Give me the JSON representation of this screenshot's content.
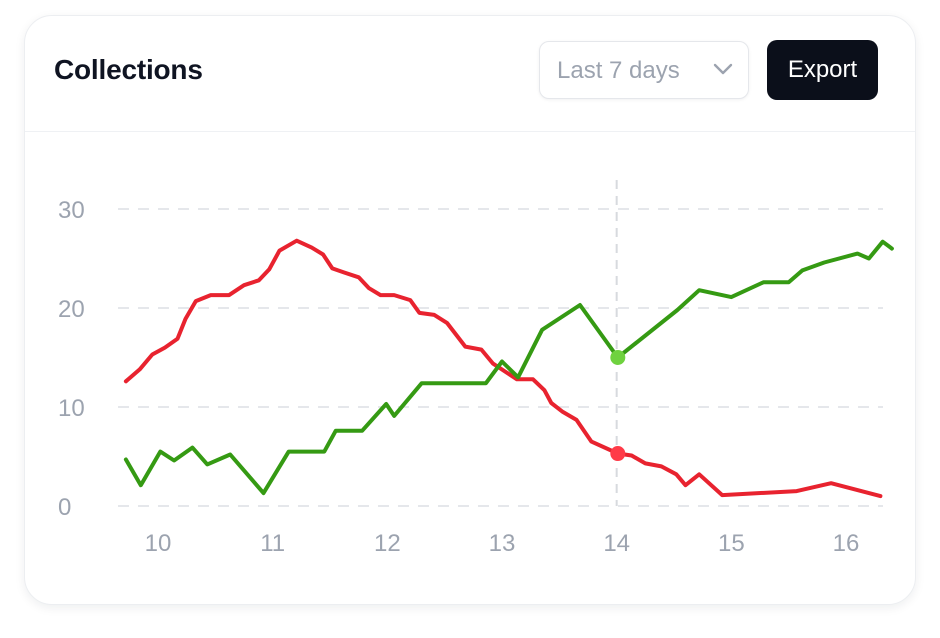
{
  "header": {
    "title": "Collections",
    "range_select": {
      "value": "Last 7 days",
      "icon": "chevron-down-icon"
    },
    "export_label": "Export"
  },
  "colors": {
    "red_series": "#e8232f",
    "green_series": "#359a13",
    "red_marker": "#ff3b48",
    "green_marker": "#6fd23f",
    "grid": "#e5e7eb",
    "axis_text": "#9ca3af"
  },
  "chart_data": {
    "type": "line",
    "title": "",
    "xlabel": "",
    "ylabel": "",
    "xlim": [
      9.7,
      16.4
    ],
    "ylim": [
      0,
      30
    ],
    "x_ticks": [
      10,
      11,
      12,
      13,
      14,
      15,
      16
    ],
    "x_tick_labels": [
      "10",
      "11",
      "12",
      "13",
      "14",
      "15",
      "16"
    ],
    "y_ticks": [
      0,
      10,
      20,
      30
    ],
    "y_tick_labels": [
      "0",
      "10",
      "20",
      "30"
    ],
    "grid": "horizontal dashed",
    "hover_x": 14,
    "series": [
      {
        "color": "#e8232f",
        "points": [
          [
            9.72,
            12.6
          ],
          [
            9.84,
            13.8
          ],
          [
            9.95,
            15.3
          ],
          [
            10.06,
            16
          ],
          [
            10.17,
            16.9
          ],
          [
            10.24,
            18.9
          ],
          [
            10.33,
            20.7
          ],
          [
            10.46,
            21.3
          ],
          [
            10.62,
            21.3
          ],
          [
            10.75,
            22.3
          ],
          [
            10.88,
            22.8
          ],
          [
            10.97,
            23.9
          ],
          [
            11.06,
            25.8
          ],
          [
            11.21,
            26.8
          ],
          [
            11.34,
            26.1
          ],
          [
            11.44,
            25.4
          ],
          [
            11.52,
            24
          ],
          [
            11.62,
            23.6
          ],
          [
            11.75,
            23.1
          ],
          [
            11.84,
            22
          ],
          [
            11.94,
            21.3
          ],
          [
            12.06,
            21.3
          ],
          [
            12.2,
            20.8
          ],
          [
            12.28,
            19.5
          ],
          [
            12.41,
            19.3
          ],
          [
            12.52,
            18.5
          ],
          [
            12.68,
            16.1
          ],
          [
            12.82,
            15.8
          ],
          [
            12.92,
            14.4
          ],
          [
            13.13,
            12.8
          ],
          [
            13.27,
            12.8
          ],
          [
            13.37,
            11.7
          ],
          [
            13.43,
            10.4
          ],
          [
            13.53,
            9.5
          ],
          [
            13.65,
            8.7
          ],
          [
            13.78,
            6.5
          ],
          [
            14.01,
            5.3
          ],
          [
            14.13,
            5.1
          ],
          [
            14.25,
            4.3
          ],
          [
            14.39,
            4
          ],
          [
            14.52,
            3.2
          ],
          [
            14.6,
            2.1
          ],
          [
            14.72,
            3.2
          ],
          [
            14.92,
            1.1
          ],
          [
            15.57,
            1.5
          ],
          [
            15.87,
            2.3
          ],
          [
            16.3,
            1
          ]
        ],
        "highlight": [
          14.01,
          5.3
        ]
      },
      {
        "color": "#359a13",
        "points": [
          [
            9.72,
            4.7
          ],
          [
            9.85,
            2.1
          ],
          [
            10.02,
            5.5
          ],
          [
            10.14,
            4.6
          ],
          [
            10.3,
            5.9
          ],
          [
            10.43,
            4.2
          ],
          [
            10.63,
            5.2
          ],
          [
            10.92,
            1.3
          ],
          [
            11.14,
            5.5
          ],
          [
            11.45,
            5.5
          ],
          [
            11.55,
            7.6
          ],
          [
            11.78,
            7.6
          ],
          [
            11.99,
            10.3
          ],
          [
            12.06,
            9.1
          ],
          [
            12.3,
            12.4
          ],
          [
            12.86,
            12.4
          ],
          [
            13.0,
            14.6
          ],
          [
            13.14,
            13
          ],
          [
            13.35,
            17.8
          ],
          [
            13.68,
            20.3
          ],
          [
            14.01,
            15
          ],
          [
            14.53,
            19.8
          ],
          [
            14.72,
            21.8
          ],
          [
            15.0,
            21.1
          ],
          [
            15.28,
            22.6
          ],
          [
            15.5,
            22.6
          ],
          [
            15.62,
            23.8
          ],
          [
            15.81,
            24.6
          ],
          [
            16.1,
            25.5
          ],
          [
            16.2,
            25
          ],
          [
            16.32,
            26.7
          ],
          [
            16.4,
            26
          ]
        ],
        "highlight": [
          14.01,
          15
        ]
      }
    ]
  }
}
